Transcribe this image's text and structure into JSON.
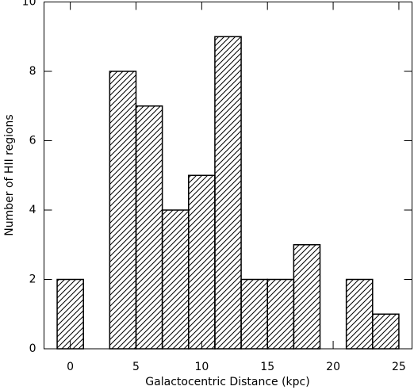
{
  "chart_data": {
    "type": "histogram",
    "xlabel": "Galactocentric Distance (kpc)",
    "ylabel": "Number of HII regions",
    "bins": [
      -1,
      1,
      3,
      5,
      7,
      9,
      11,
      13,
      15,
      17,
      19,
      21,
      23,
      25
    ],
    "values": [
      2,
      0,
      8,
      7,
      4,
      5,
      9,
      2,
      2,
      3,
      0,
      2,
      1
    ],
    "color": "#000000",
    "xlim": [
      -2,
      26
    ],
    "xticks": [
      0,
      5,
      10,
      15,
      20,
      25
    ],
    "ylim": [
      0,
      10
    ],
    "yticks": [
      0,
      2,
      4,
      6,
      8,
      10
    ]
  }
}
